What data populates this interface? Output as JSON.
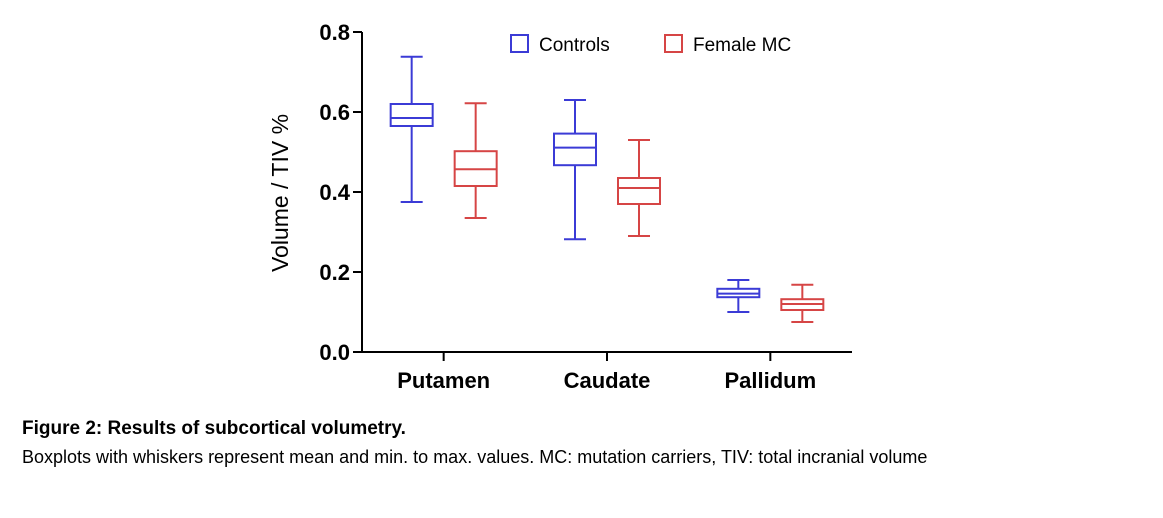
{
  "chart_data": {
    "type": "boxplot",
    "title": "",
    "xlabel": "",
    "ylabel": "Volume / TIV %",
    "ylim": [
      0,
      0.8
    ],
    "yticks": [
      0.0,
      0.2,
      0.4,
      0.6,
      0.8
    ],
    "ytick_labels": [
      "0.0",
      "0.2",
      "0.4",
      "0.6",
      "0.8"
    ],
    "categories": [
      "Putamen",
      "Caudate",
      "Pallidum"
    ],
    "grid": false,
    "legend_position": "top-center",
    "series": [
      {
        "name": "Controls",
        "color": "#3b3bd6",
        "boxes": [
          {
            "min": 0.375,
            "q1": 0.565,
            "median": 0.585,
            "q3": 0.62,
            "max": 0.738
          },
          {
            "min": 0.282,
            "q1": 0.467,
            "median": 0.511,
            "q3": 0.546,
            "max": 0.63
          },
          {
            "min": 0.1,
            "q1": 0.137,
            "median": 0.146,
            "q3": 0.158,
            "max": 0.18
          }
        ]
      },
      {
        "name": "Female MC",
        "color": "#d64545",
        "boxes": [
          {
            "min": 0.335,
            "q1": 0.415,
            "median": 0.457,
            "q3": 0.502,
            "max": 0.622
          },
          {
            "min": 0.29,
            "q1": 0.37,
            "median": 0.41,
            "q3": 0.435,
            "max": 0.53
          },
          {
            "min": 0.075,
            "q1": 0.105,
            "median": 0.12,
            "q3": 0.132,
            "max": 0.168
          }
        ]
      }
    ]
  },
  "caption": {
    "title": "Figure 2: Results of subcortical volumetry.",
    "text": "Boxplots with whiskers represent mean and min. to max. values. MC: mutation carriers, TIV: total incranial volume"
  }
}
